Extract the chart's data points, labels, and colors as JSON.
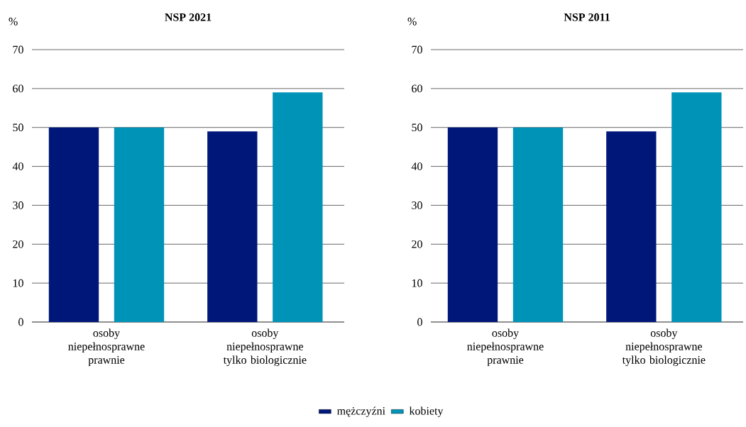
{
  "chart_data": [
    {
      "type": "bar",
      "title": "NSP 2021",
      "ylabel": "%",
      "categories": [
        "osoby niepełnosprawne prawnie",
        "osoby niepełnosprawne tylko biologicznie"
      ],
      "ylim": [
        0,
        70
      ],
      "yticks": [
        0,
        10,
        20,
        30,
        40,
        50,
        60,
        70
      ],
      "grid": "y",
      "legend": "bottom",
      "series": [
        {
          "name": "mężczyźni",
          "color": "#00177a",
          "values": [
            50,
            49
          ]
        },
        {
          "name": "kobiety",
          "color": "#0093b8",
          "values": [
            50,
            59
          ]
        }
      ]
    },
    {
      "type": "bar",
      "title": "NSP 2011",
      "ylabel": "%",
      "categories": [
        "osoby niepełnosprawne prawnie",
        "osoby niepełnosprawne tylko biologicznie"
      ],
      "ylim": [
        0,
        70
      ],
      "yticks": [
        0,
        10,
        20,
        30,
        40,
        50,
        60,
        70
      ],
      "grid": "y",
      "series": [
        {
          "color": "#00177a",
          "values": [
            50,
            49
          ]
        },
        {
          "color": "#0093b8",
          "values": [
            50,
            59
          ]
        }
      ]
    }
  ]
}
